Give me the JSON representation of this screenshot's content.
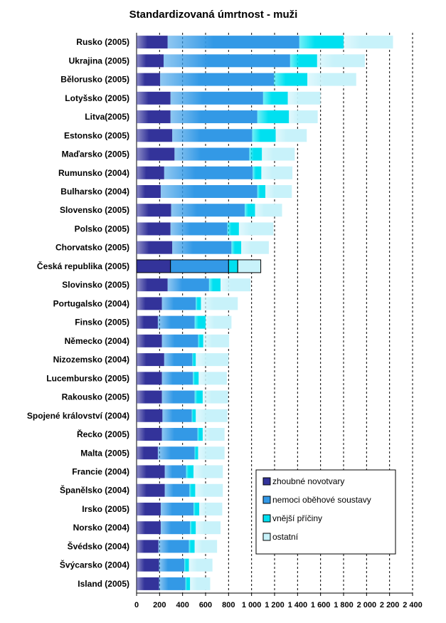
{
  "chart_data": {
    "type": "bar",
    "orientation": "horizontal",
    "stacked": true,
    "title": "Standardizovaná úmrtnost - muži",
    "xlabel": "",
    "ylabel": "",
    "xlim": [
      0,
      2400
    ],
    "x_ticks": [
      0,
      200,
      400,
      600,
      800,
      1000,
      1200,
      1400,
      1600,
      1800,
      2000,
      2200,
      2400
    ],
    "x_tick_labels": [
      "0",
      "200",
      "400",
      "600",
      "800",
      "1 000",
      "1 200",
      "1 400",
      "1 600",
      "1 800",
      "2 000",
      "2 200",
      "2 400"
    ],
    "grid": "vertical dashed",
    "legend_position": "bottom-right",
    "highlighted_category": "Česká republika (2005)",
    "categories": [
      "Rusko (2005)",
      "Ukrajina (2005)",
      "Bělorusko (2005)",
      "Lotyšsko (2005)",
      "Litva(2005)",
      "Estonsko (2005)",
      "Maďarsko (2005)",
      "Rumunsko (2004)",
      "Bulharsko (2004)",
      "Slovensko (2005)",
      "Polsko (2005)",
      "Chorvatsko (2005)",
      "Česká republika (2005)",
      "Slovinsko (2005)",
      "Portugalsko (2004)",
      "Finsko (2005)",
      "Německo (2004)",
      "Nizozemsko (2004)",
      "Lucembursko (2005)",
      "Rakousko (2005)",
      "Spojené království (2004)",
      "Řecko (2005)",
      "Malta (2005)",
      "Francie (2004)",
      "Španělsko (2004)",
      "Irsko (2005)",
      "Norsko (2004)",
      "Švédsko (2004)",
      "Švýcarsko (2004)",
      "Island (2005)"
    ],
    "series": [
      {
        "name": "zhoubné novotvary",
        "color": "#33339a",
        "values": [
          270,
          235,
          205,
          295,
          295,
          310,
          330,
          240,
          210,
          300,
          295,
          310,
          295,
          270,
          220,
          185,
          220,
          240,
          220,
          220,
          225,
          220,
          185,
          245,
          245,
          210,
          210,
          190,
          195,
          195
        ]
      },
      {
        "name": "nemoci oběhové soustavy",
        "color": "#3399e6",
        "values": [
          1145,
          1100,
          990,
          805,
          755,
          695,
          650,
          770,
          840,
          640,
          495,
          515,
          505,
          360,
          295,
          320,
          315,
          245,
          270,
          285,
          255,
          310,
          320,
          185,
          215,
          285,
          255,
          265,
          220,
          230
        ]
      },
      {
        "name": "vnější příčiny",
        "color": "#00e0f0",
        "values": [
          385,
          235,
          290,
          215,
          275,
          205,
          110,
          75,
          70,
          90,
          100,
          85,
          80,
          100,
          45,
          95,
          45,
          30,
          50,
          70,
          35,
          45,
          30,
          65,
          50,
          50,
          50,
          50,
          40,
          40
        ]
      },
      {
        "name": "ostatní",
        "color": "#c8f2fa",
        "values": [
          430,
          415,
          425,
          285,
          250,
          270,
          285,
          270,
          230,
          235,
          300,
          240,
          200,
          260,
          320,
          225,
          225,
          285,
          245,
          220,
          275,
          190,
          230,
          255,
          240,
          200,
          215,
          195,
          205,
          175
        ]
      }
    ]
  }
}
